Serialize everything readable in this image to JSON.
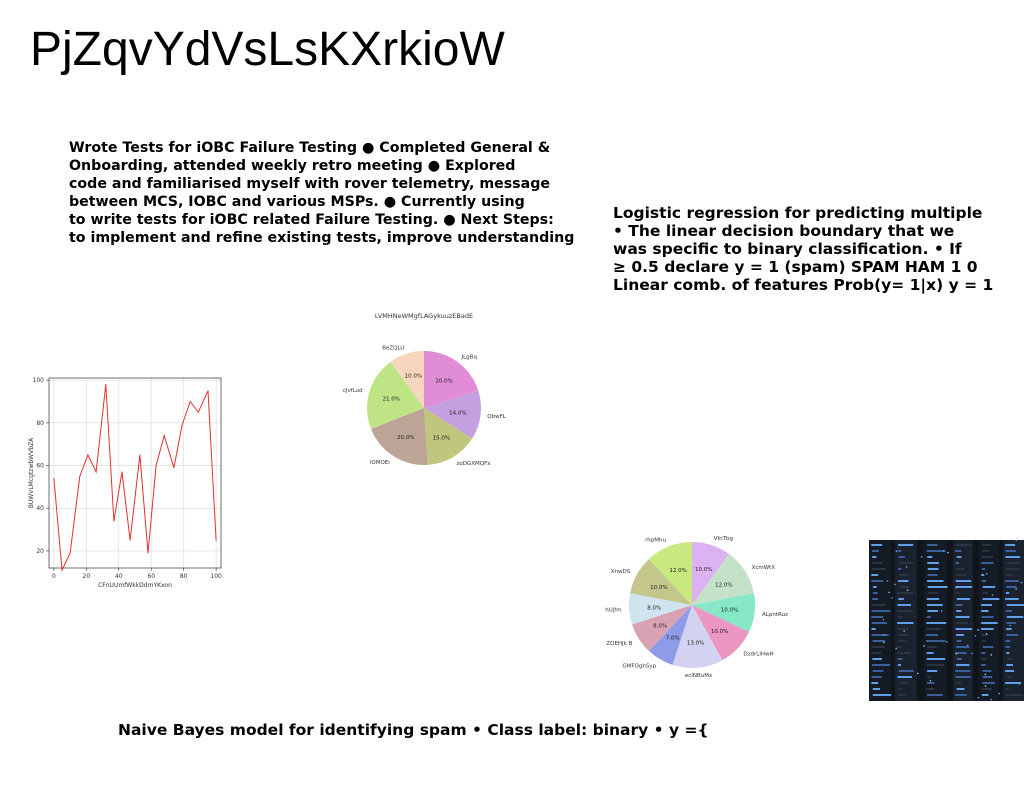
{
  "slide": {
    "title": "PjZqvYdVsLsKXrkioW",
    "paragraph1": [
      "Wrote Tests for iOBC Failure Testing ● Completed General &",
      "Onboarding, attended weekly retro meeting ● Explored",
      "code and familiarised myself with rover telemetry, message",
      "between MCS, IOBC and various MSPs. ● Currently using",
      "to write tests for iOBC related Failure Testing. ● Next Steps:",
      "to implement and refine existing tests, improve understanding"
    ],
    "paragraph2": [
      "Logistic regression for predicting multiple",
      "• The linear decision boundary that we",
      "was specific to binary classification. • If",
      "≥ 0.5 declare y = 1 (spam) SPAM HAM 1 0",
      "Linear comb. of features Prob(y= 1|x) y = 1"
    ],
    "paragraph3": "Naive Bayes model for identifying spam • Class label: binary • y ={"
  },
  "chart_data": [
    {
      "type": "line",
      "xlabel": "CFnUUmfWkkDdmYKxon",
      "ylabel": "BUWVLMcgtzwbWVbZA",
      "xlim": [
        -3,
        103
      ],
      "ylim": [
        12,
        101
      ],
      "xticks": [
        0,
        20,
        40,
        60,
        80,
        100
      ],
      "yticks": [
        20,
        40,
        60,
        80,
        100
      ],
      "grid": true,
      "color": "#e03030",
      "x": [
        0,
        5,
        10,
        16,
        21,
        26,
        32,
        37,
        42,
        47,
        53,
        58,
        63,
        68,
        74,
        79,
        84,
        89,
        95,
        100
      ],
      "y": [
        54,
        11,
        19,
        55,
        65,
        57,
        98,
        34,
        57,
        25,
        65,
        19,
        60,
        74,
        59,
        79,
        90,
        85,
        95,
        25
      ]
    },
    {
      "type": "pie",
      "title": "LVMHNeWMgfLAGykuuzEBadE",
      "slices": [
        {
          "label": "JLgBq",
          "value": 20.0,
          "pct": "20.0%",
          "color": "#e08cd6"
        },
        {
          "label": "QbwFL",
          "value": 14.0,
          "pct": "14.0%",
          "color": "#c5a0e0"
        },
        {
          "label": "zoDGXMQFx",
          "value": 15.0,
          "pct": "15.0%",
          "color": "#c1c67e"
        },
        {
          "label": "iOMOEi",
          "value": 20.0,
          "pct": "20.0%",
          "color": "#bca596"
        },
        {
          "label": "cJvfLud",
          "value": 21.0,
          "pct": "21.0%",
          "color": "#bfe486"
        },
        {
          "label": "BeZQLU",
          "value": 10.0,
          "pct": "10.0%",
          "color": "#f6d7be"
        }
      ]
    },
    {
      "type": "pie",
      "title": "",
      "slices": [
        {
          "label": "VInTbg",
          "value": 10.0,
          "pct": "10.0%",
          "color": "#dcb2f2"
        },
        {
          "label": "XcmWtX",
          "value": 12.0,
          "pct": "12.0%",
          "color": "#c4e2c8"
        },
        {
          "label": "ALpntRuz",
          "value": 10.0,
          "pct": "10.0%",
          "color": "#86e8c6"
        },
        {
          "label": "DzdrLlHwH",
          "value": 10.0,
          "pct": "10.0%",
          "color": "#ec96c2"
        },
        {
          "label": "ecINBuMx",
          "value": 13.0,
          "pct": "13.0%",
          "color": "#d3d2f0"
        },
        {
          "label": "GMFOghSyp",
          "value": 7.0,
          "pct": "7.0%",
          "color": "#8d9be8"
        },
        {
          "label": "ZQEHJk B",
          "value": 8.0,
          "pct": "8.0%",
          "color": "#d8a2b2"
        },
        {
          "label": "hUjfm",
          "value": 8.0,
          "pct": "8.0%",
          "color": "#cfe4ee"
        },
        {
          "label": "XnwDS",
          "value": 10.0,
          "pct": "10.0%",
          "color": "#c4c78c"
        },
        {
          "label": "rhpMhu",
          "value": 12.0,
          "pct": "12.0%",
          "color": "#c8ea80"
        }
      ]
    }
  ],
  "image": {
    "icon": "server-room-photo"
  }
}
